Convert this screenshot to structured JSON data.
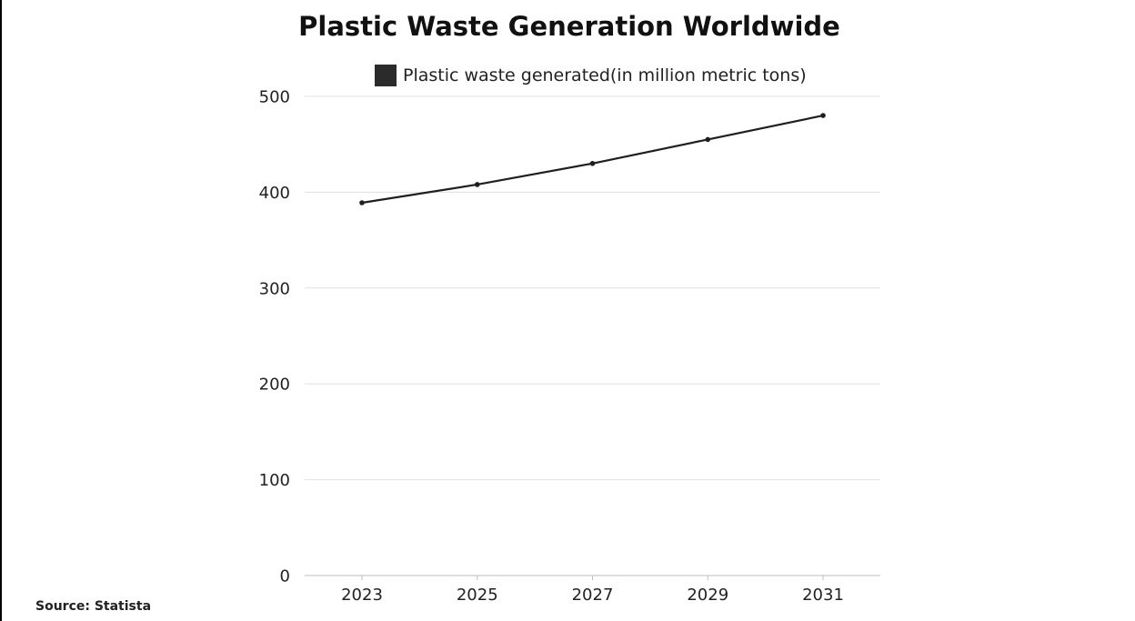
{
  "chart_data": {
    "type": "line",
    "title": "Plastic Waste Generation Worldwide",
    "xlabel": "",
    "ylabel": "",
    "categories": [
      "2023",
      "2025",
      "2027",
      "2029",
      "2031"
    ],
    "series": [
      {
        "name": "Plastic waste generated(in million metric tons)",
        "values": [
          389,
          408,
          430,
          455,
          480
        ]
      }
    ],
    "ylim": [
      0,
      500
    ],
    "yticks": [
      "0",
      "100",
      "200",
      "300",
      "400",
      "500"
    ],
    "grid": true,
    "legend": "top",
    "colors": {
      "series": "#1f1f1f",
      "legend_swatch": "#2b2b2b",
      "grid": "#e0e0e0",
      "axis": "#bdbdbd"
    }
  },
  "footer": {
    "source": "Source: Statista"
  }
}
